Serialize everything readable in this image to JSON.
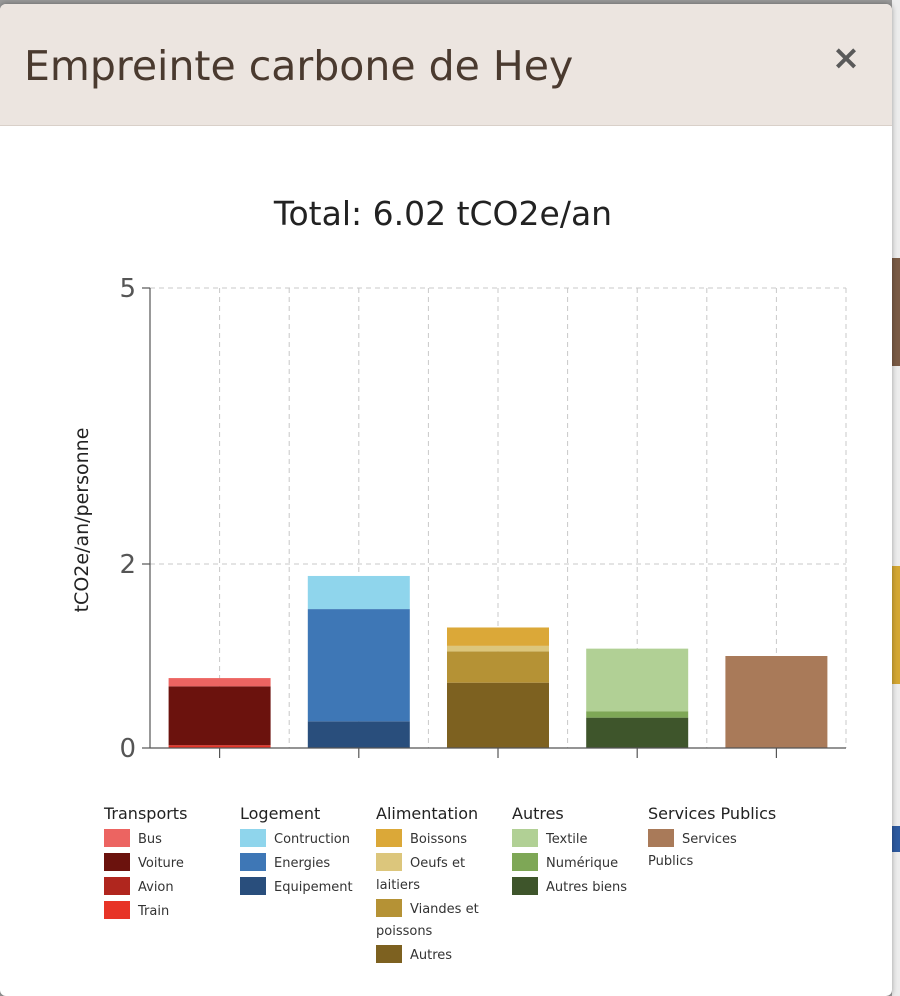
{
  "modal": {
    "title": "Empreinte carbone de Hey",
    "close_label": "×"
  },
  "chart_data": {
    "type": "bar",
    "stacked": true,
    "title": "Total: 6.02 tCO2e/an",
    "ylabel": "tCO2e/an/personne",
    "xlabel": "",
    "ylim": [
      0,
      5
    ],
    "yticks": [
      0,
      2,
      5
    ],
    "grid": true,
    "categories": [
      "Transports",
      "Logement",
      "Alimentation",
      "Autres",
      "Services Publics"
    ],
    "stacks": [
      {
        "category": "Transports",
        "segments": [
          {
            "name": "Train",
            "value": 0.03,
            "color": "#e73427"
          },
          {
            "name": "Avion",
            "value": 0.0,
            "color": "#b0261e"
          },
          {
            "name": "Voiture",
            "value": 0.64,
            "color": "#6b120d"
          },
          {
            "name": "Bus",
            "value": 0.09,
            "color": "#ec6461"
          }
        ]
      },
      {
        "category": "Logement",
        "segments": [
          {
            "name": "Equipement",
            "value": 0.29,
            "color": "#294e7c"
          },
          {
            "name": "Energies",
            "value": 1.22,
            "color": "#3e77b6"
          },
          {
            "name": "Contruction",
            "value": 0.36,
            "color": "#8fd5ec"
          }
        ]
      },
      {
        "category": "Alimentation",
        "segments": [
          {
            "name": "Autres",
            "value": 0.71,
            "color": "#7d6120"
          },
          {
            "name": "Viandes et poissons",
            "value": 0.34,
            "color": "#b59235"
          },
          {
            "name": "Oeufs et laitiers",
            "value": 0.06,
            "color": "#dcc67c"
          },
          {
            "name": "Boissons",
            "value": 0.2,
            "color": "#dba838"
          }
        ]
      },
      {
        "category": "Autres",
        "segments": [
          {
            "name": "Autres biens",
            "value": 0.33,
            "color": "#3e552b"
          },
          {
            "name": "Numérique",
            "value": 0.07,
            "color": "#7ea756"
          },
          {
            "name": "Textile",
            "value": 0.68,
            "color": "#b1d095"
          }
        ]
      },
      {
        "category": "Services Publics",
        "segments": [
          {
            "name": "Services Publics",
            "value": 1.0,
            "color": "#a97a59"
          }
        ]
      }
    ]
  },
  "legend": {
    "groups": [
      {
        "title": "Transports",
        "items": [
          {
            "label": "Bus",
            "color": "#ec6461"
          },
          {
            "label": "Voiture",
            "color": "#6b120d"
          },
          {
            "label": "Avion",
            "color": "#b0261e"
          },
          {
            "label": "Train",
            "color": "#e73427"
          }
        ]
      },
      {
        "title": "Logement",
        "items": [
          {
            "label": "Contruction",
            "color": "#8fd5ec"
          },
          {
            "label": "Energies",
            "color": "#3e77b6"
          },
          {
            "label": "Equipement",
            "color": "#294e7c"
          }
        ]
      },
      {
        "title": "Alimentation",
        "items": [
          {
            "label": "Boissons",
            "color": "#dba838"
          },
          {
            "label": "Oeufs et laitiers",
            "color": "#dcc67c"
          },
          {
            "label": "Viandes et poissons",
            "color": "#b59235"
          },
          {
            "label": "Autres",
            "color": "#7d6120"
          }
        ]
      },
      {
        "title": "Autres",
        "items": [
          {
            "label": "Textile",
            "color": "#b1d095"
          },
          {
            "label": "Numérique",
            "color": "#7ea756"
          },
          {
            "label": "Autres biens",
            "color": "#3e552b"
          }
        ]
      },
      {
        "title": "Services Publics",
        "items": [
          {
            "label": "Services Publics",
            "color": "#a97a59"
          }
        ]
      }
    ]
  }
}
